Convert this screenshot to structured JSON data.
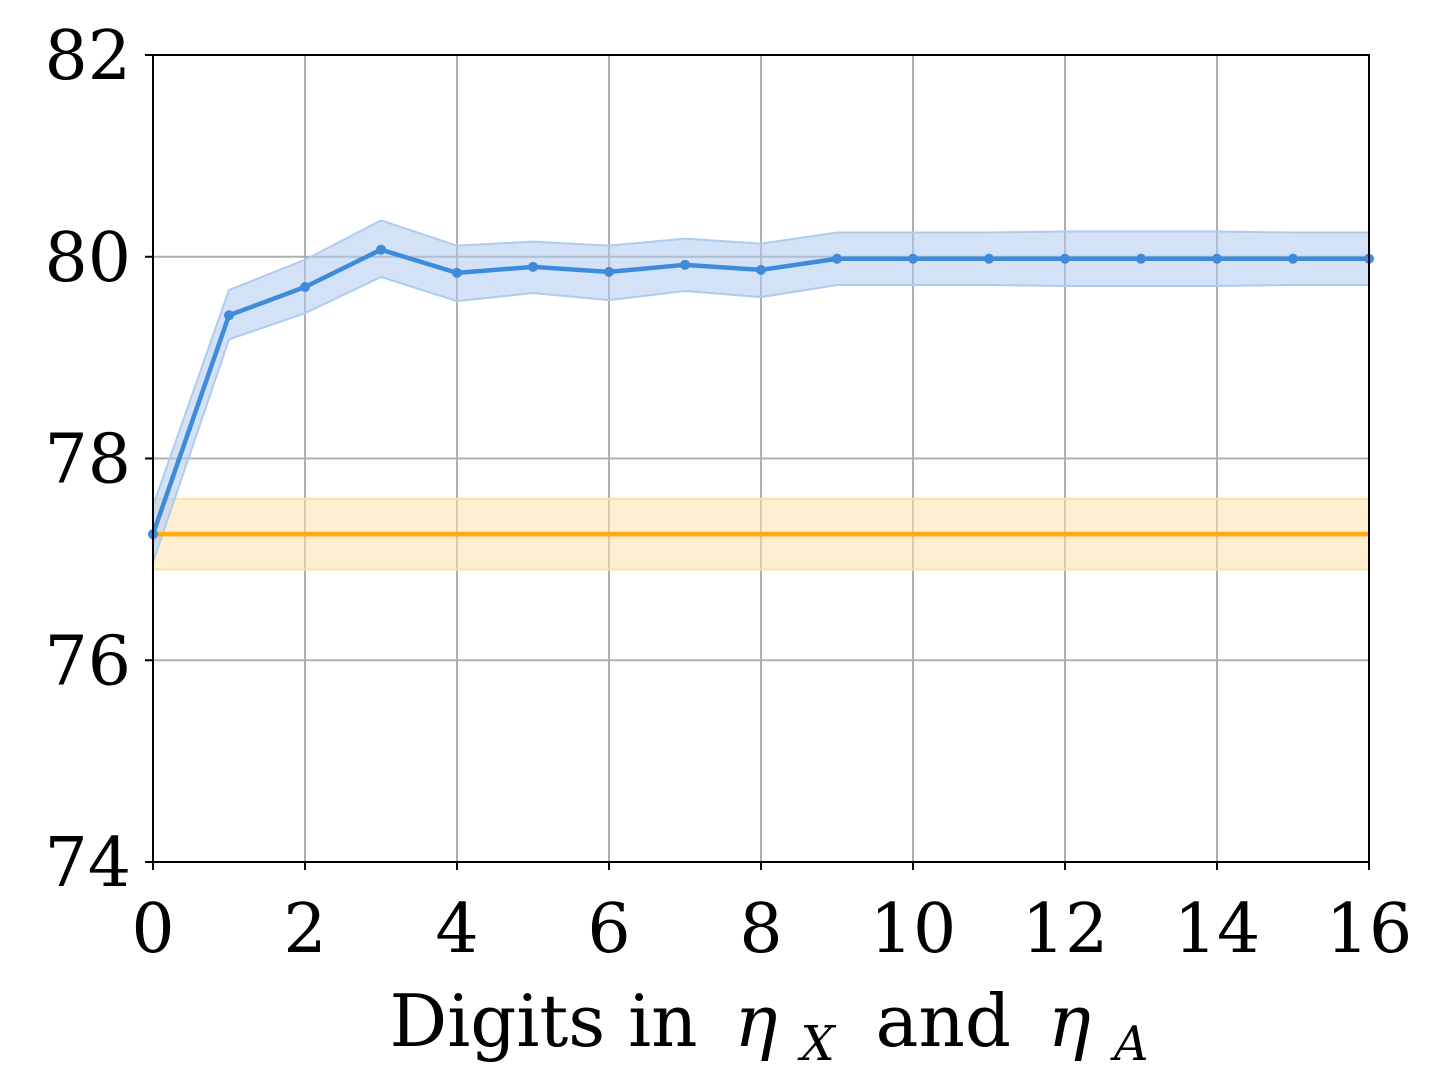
{
  "chart_data": {
    "type": "line",
    "title": "",
    "xlabel": {
      "text": "Digits in",
      "sym1": "η",
      "sub1": "X",
      "connector": "and",
      "sym2": "η",
      "sub2": "A"
    },
    "ylabel": "",
    "xlim": [
      0,
      16
    ],
    "ylim": [
      74,
      82
    ],
    "xticks": [
      0,
      2,
      4,
      6,
      8,
      10,
      12,
      14,
      16
    ],
    "yticks": [
      74,
      76,
      78,
      80,
      82
    ],
    "grid": true,
    "series": [
      {
        "color": "#3d8bda",
        "band_color": "#aecbf0",
        "markers": true,
        "x": [
          0,
          1,
          2,
          3,
          4,
          5,
          6,
          7,
          8,
          9,
          10,
          11,
          12,
          13,
          14,
          15,
          16
        ],
        "y": [
          77.25,
          79.42,
          79.7,
          80.07,
          79.84,
          79.9,
          79.85,
          79.92,
          79.87,
          79.98,
          79.98,
          79.98,
          79.98,
          79.98,
          79.98,
          79.98,
          79.98
        ],
        "lower": [
          76.97,
          79.18,
          79.44,
          79.8,
          79.56,
          79.64,
          79.57,
          79.66,
          79.6,
          79.72,
          79.72,
          79.72,
          79.71,
          79.71,
          79.71,
          79.72,
          79.72
        ],
        "upper": [
          77.53,
          79.67,
          79.97,
          80.36,
          80.11,
          80.15,
          80.11,
          80.18,
          80.13,
          80.24,
          80.24,
          80.24,
          80.25,
          80.25,
          80.25,
          80.24,
          80.24
        ]
      },
      {
        "color": "#ffaa10",
        "band_color": "#ffe0a8",
        "markers": false,
        "x": [
          0,
          16
        ],
        "y": [
          77.25,
          77.25
        ],
        "lower": [
          76.9,
          76.9
        ],
        "upper": [
          77.6,
          77.6
        ]
      }
    ]
  }
}
